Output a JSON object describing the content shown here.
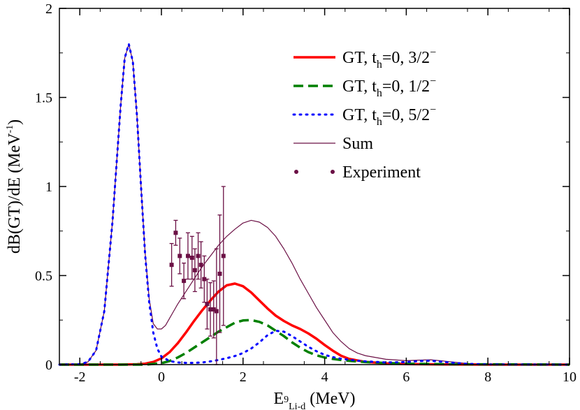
{
  "chart_data": {
    "type": "line",
    "title": "",
    "xlabel": {
      "base": "E",
      "sup": "9",
      "sub": "Li-d",
      "unit": " (MeV)"
    },
    "ylabel": {
      "main": "dB(GT)/dE (MeV",
      "sup": "-1",
      "close": ")"
    },
    "xlim": [
      -2.5,
      10
    ],
    "ylim": [
      0,
      2
    ],
    "xticks": [
      -2,
      0,
      2,
      4,
      6,
      8,
      10
    ],
    "xtick_labels": [
      "-2",
      "0",
      "2",
      "4",
      "6",
      "8",
      "10"
    ],
    "yticks": [
      0,
      0.5,
      1,
      1.5,
      2
    ],
    "ytick_labels": [
      "0",
      "0.5",
      "1",
      "1.5",
      "2"
    ],
    "grid": false,
    "legend_position": "top-right",
    "series": [
      {
        "name": "GT, t_h=0, 3/2^-",
        "legend": {
          "pre": "GT, t",
          "sub": "h",
          "mid": "=0, 3/2",
          "sup": "−"
        },
        "color": "#ff0000",
        "style": "solid",
        "x": [
          -2.5,
          -1.0,
          -0.6,
          -0.4,
          -0.2,
          0.0,
          0.2,
          0.4,
          0.6,
          0.8,
          1.0,
          1.2,
          1.4,
          1.6,
          1.8,
          2.0,
          2.2,
          2.4,
          2.6,
          2.8,
          3.0,
          3.2,
          3.4,
          3.6,
          3.8,
          4.0,
          4.2,
          4.4,
          4.6,
          5.0,
          5.5,
          6.0,
          7.0,
          8.0,
          10.0
        ],
        "y": [
          0,
          0,
          0.002,
          0.005,
          0.015,
          0.035,
          0.07,
          0.12,
          0.18,
          0.245,
          0.305,
          0.36,
          0.41,
          0.445,
          0.455,
          0.44,
          0.405,
          0.36,
          0.315,
          0.275,
          0.245,
          0.22,
          0.2,
          0.175,
          0.145,
          0.11,
          0.078,
          0.05,
          0.032,
          0.015,
          0.007,
          0.003,
          0.001,
          0,
          0
        ]
      },
      {
        "name": "GT, t_h=0, 1/2^-",
        "legend": {
          "pre": "GT, t",
          "sub": "h",
          "mid": "=0, 1/2",
          "sup": "−"
        },
        "color": "#008000",
        "style": "dashed",
        "x": [
          -2.5,
          -0.4,
          0.0,
          0.2,
          0.4,
          0.6,
          0.8,
          1.0,
          1.2,
          1.4,
          1.6,
          1.8,
          2.0,
          2.2,
          2.4,
          2.6,
          2.8,
          3.0,
          3.2,
          3.4,
          3.6,
          3.8,
          4.0,
          4.2,
          4.4,
          4.6,
          5.0,
          5.5,
          6.0,
          7.0,
          10.0
        ],
        "y": [
          0,
          0,
          0.008,
          0.02,
          0.04,
          0.065,
          0.095,
          0.125,
          0.155,
          0.185,
          0.21,
          0.235,
          0.248,
          0.25,
          0.24,
          0.22,
          0.19,
          0.16,
          0.125,
          0.095,
          0.07,
          0.052,
          0.04,
          0.032,
          0.026,
          0.021,
          0.014,
          0.009,
          0.005,
          0.002,
          0
        ]
      },
      {
        "name": "GT, t_h=0, 5/2^-",
        "legend": {
          "pre": "GT, t",
          "sub": "h",
          "mid": "=0, 5/2",
          "sup": "−"
        },
        "color": "#0000ff",
        "style": "dotted",
        "x": [
          -2.5,
          -2.0,
          -1.8,
          -1.6,
          -1.4,
          -1.2,
          -1.0,
          -0.9,
          -0.8,
          -0.7,
          -0.6,
          -0.5,
          -0.4,
          -0.3,
          -0.2,
          -0.1,
          0.0,
          0.2,
          0.4,
          0.6,
          0.8,
          1.0,
          1.2,
          1.4,
          1.6,
          1.8,
          2.0,
          2.2,
          2.4,
          2.6,
          2.8,
          3.0,
          3.2,
          3.4,
          3.6,
          3.8,
          4.0,
          4.2,
          4.4,
          4.6,
          4.8,
          5.0,
          5.5,
          6.0,
          6.3,
          6.6,
          7.0,
          7.5,
          8.0,
          10.0
        ],
        "y": [
          0,
          0.002,
          0.015,
          0.08,
          0.3,
          0.8,
          1.45,
          1.72,
          1.8,
          1.7,
          1.4,
          1.0,
          0.62,
          0.35,
          0.18,
          0.09,
          0.045,
          0.02,
          0.012,
          0.01,
          0.01,
          0.012,
          0.018,
          0.026,
          0.036,
          0.048,
          0.065,
          0.09,
          0.125,
          0.165,
          0.19,
          0.185,
          0.16,
          0.13,
          0.1,
          0.075,
          0.055,
          0.042,
          0.033,
          0.027,
          0.022,
          0.018,
          0.012,
          0.014,
          0.02,
          0.022,
          0.013,
          0.004,
          0.001,
          0
        ]
      },
      {
        "name": "Sum",
        "legend": {
          "pre": "Sum",
          "sub": "",
          "mid": "",
          "sup": ""
        },
        "color": "#6b1045",
        "style": "thin",
        "x": [
          -2.5,
          -2.0,
          -1.8,
          -1.6,
          -1.4,
          -1.2,
          -1.0,
          -0.9,
          -0.8,
          -0.7,
          -0.6,
          -0.5,
          -0.4,
          -0.3,
          -0.2,
          -0.1,
          0.0,
          0.1,
          0.2,
          0.3,
          0.4,
          0.6,
          0.8,
          1.0,
          1.2,
          1.4,
          1.6,
          1.8,
          2.0,
          2.2,
          2.4,
          2.6,
          2.8,
          3.0,
          3.2,
          3.4,
          3.6,
          3.8,
          4.0,
          4.2,
          4.4,
          4.6,
          4.8,
          5.0,
          5.5,
          6.0,
          6.3,
          6.6,
          7.0,
          7.5,
          8.0,
          10.0
        ],
        "y": [
          0,
          0.002,
          0.015,
          0.08,
          0.3,
          0.8,
          1.45,
          1.72,
          1.8,
          1.7,
          1.4,
          1.0,
          0.63,
          0.37,
          0.23,
          0.2,
          0.2,
          0.22,
          0.26,
          0.3,
          0.34,
          0.41,
          0.48,
          0.55,
          0.61,
          0.67,
          0.72,
          0.76,
          0.795,
          0.81,
          0.8,
          0.77,
          0.72,
          0.65,
          0.57,
          0.48,
          0.4,
          0.32,
          0.25,
          0.18,
          0.13,
          0.09,
          0.065,
          0.05,
          0.03,
          0.022,
          0.025,
          0.027,
          0.018,
          0.006,
          0.002,
          0
        ]
      }
    ],
    "experiment": {
      "name": "Experiment",
      "color": "#6b1045",
      "points": [
        {
          "x": 0.25,
          "y": 0.56,
          "err": 0.12
        },
        {
          "x": 0.35,
          "y": 0.74,
          "err": 0.07
        },
        {
          "x": 0.45,
          "y": 0.61,
          "err": 0.1
        },
        {
          "x": 0.55,
          "y": 0.47,
          "err": 0.1
        },
        {
          "x": 0.65,
          "y": 0.61,
          "err": 0.13
        },
        {
          "x": 0.75,
          "y": 0.6,
          "err": 0.12
        },
        {
          "x": 0.82,
          "y": 0.53,
          "err": 0.12
        },
        {
          "x": 0.9,
          "y": 0.61,
          "err": 0.13
        },
        {
          "x": 0.97,
          "y": 0.56,
          "err": 0.13
        },
        {
          "x": 1.05,
          "y": 0.48,
          "err": 0.13
        },
        {
          "x": 1.12,
          "y": 0.34,
          "err": 0.14
        },
        {
          "x": 1.2,
          "y": 0.31,
          "err": 0.15
        },
        {
          "x": 1.28,
          "y": 0.31,
          "err": 0.16
        },
        {
          "x": 1.35,
          "y": 0.3,
          "err": 0.35
        },
        {
          "x": 1.43,
          "y": 0.51,
          "err": 0.33
        },
        {
          "x": 1.52,
          "y": 0.61,
          "err": 0.39
        }
      ]
    }
  }
}
